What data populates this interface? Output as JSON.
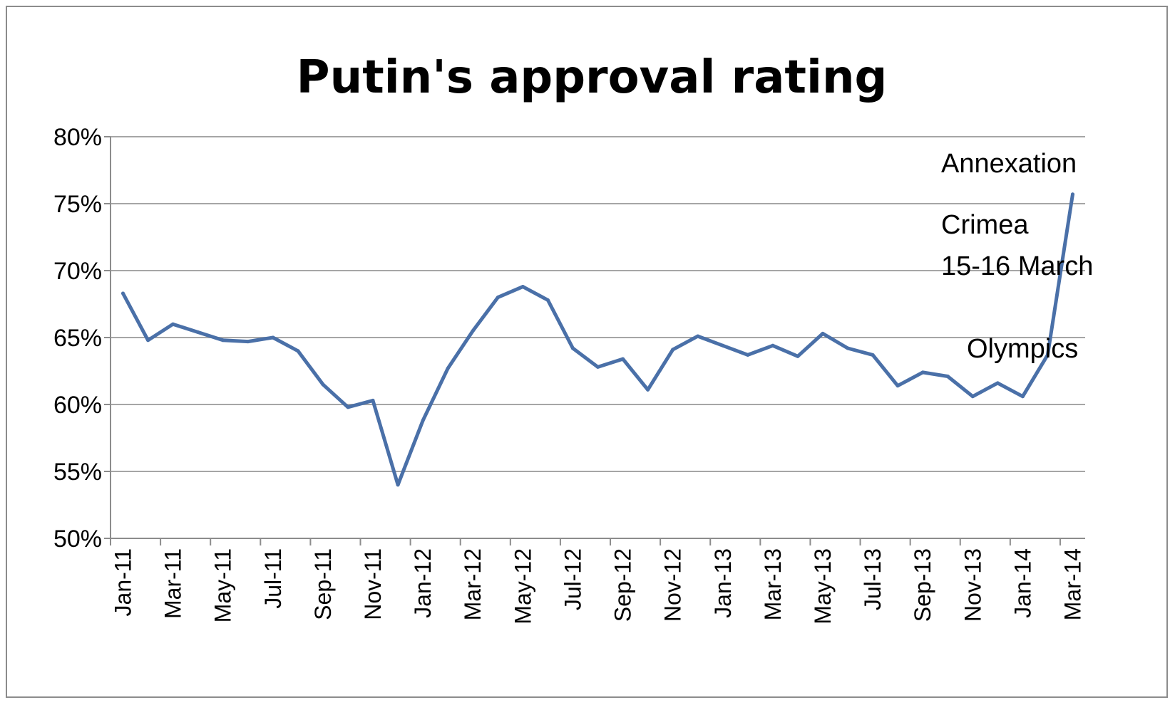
{
  "chart_data": {
    "type": "line",
    "title": "Putin's approval rating",
    "xlabel": "",
    "ylabel": "",
    "ylim": [
      50,
      80
    ],
    "ytick_step": 5,
    "ytick_format": "percent",
    "grid": "horizontal",
    "legend": "none",
    "x": [
      "Jan-11",
      "Feb-11",
      "Mar-11",
      "Apr-11",
      "May-11",
      "Jun-11",
      "Jul-11",
      "Aug-11",
      "Sep-11",
      "Oct-11",
      "Nov-11",
      "Dec-11",
      "Jan-12",
      "Feb-12",
      "Mar-12",
      "Apr-12",
      "May-12",
      "Jun-12",
      "Jul-12",
      "Aug-12",
      "Sep-12",
      "Oct-12",
      "Nov-12",
      "Dec-12",
      "Jan-13",
      "Feb-13",
      "Mar-13",
      "Apr-13",
      "May-13",
      "Jun-13",
      "Jul-13",
      "Aug-13",
      "Sep-13",
      "Oct-13",
      "Nov-13",
      "Dec-13",
      "Jan-14",
      "Feb-14",
      "Mar-14"
    ],
    "xtick_labels": [
      "Jan-11",
      "Mar-11",
      "May-11",
      "Jul-11",
      "Sep-11",
      "Nov-11",
      "Jan-12",
      "Mar-12",
      "May-12",
      "Jul-12",
      "Sep-12",
      "Nov-12",
      "Jan-13",
      "Mar-13",
      "May-13",
      "Jul-13",
      "Sep-13",
      "Nov-13",
      "Jan-14",
      "Mar-14"
    ],
    "series": [
      {
        "name": "",
        "color": "#4a70a8",
        "values": [
          68.3,
          64.8,
          66.0,
          65.4,
          64.8,
          64.7,
          65.0,
          64.0,
          61.5,
          59.8,
          60.3,
          54.0,
          58.8,
          62.7,
          65.5,
          68.0,
          68.8,
          67.8,
          64.2,
          62.8,
          63.4,
          61.1,
          64.1,
          65.1,
          64.4,
          63.7,
          64.4,
          63.6,
          65.3,
          64.2,
          63.7,
          61.4,
          62.4,
          62.1,
          60.6,
          61.6,
          60.6,
          63.7,
          75.7
        ]
      }
    ],
    "annotations": [
      {
        "text": "Annexation",
        "near": "Mar-14"
      },
      {
        "text": "Crimea",
        "near": "Mar-14"
      },
      {
        "text": "15-16 March",
        "near": "Mar-14"
      },
      {
        "text": "Olympics",
        "near": "Feb-14"
      }
    ]
  }
}
